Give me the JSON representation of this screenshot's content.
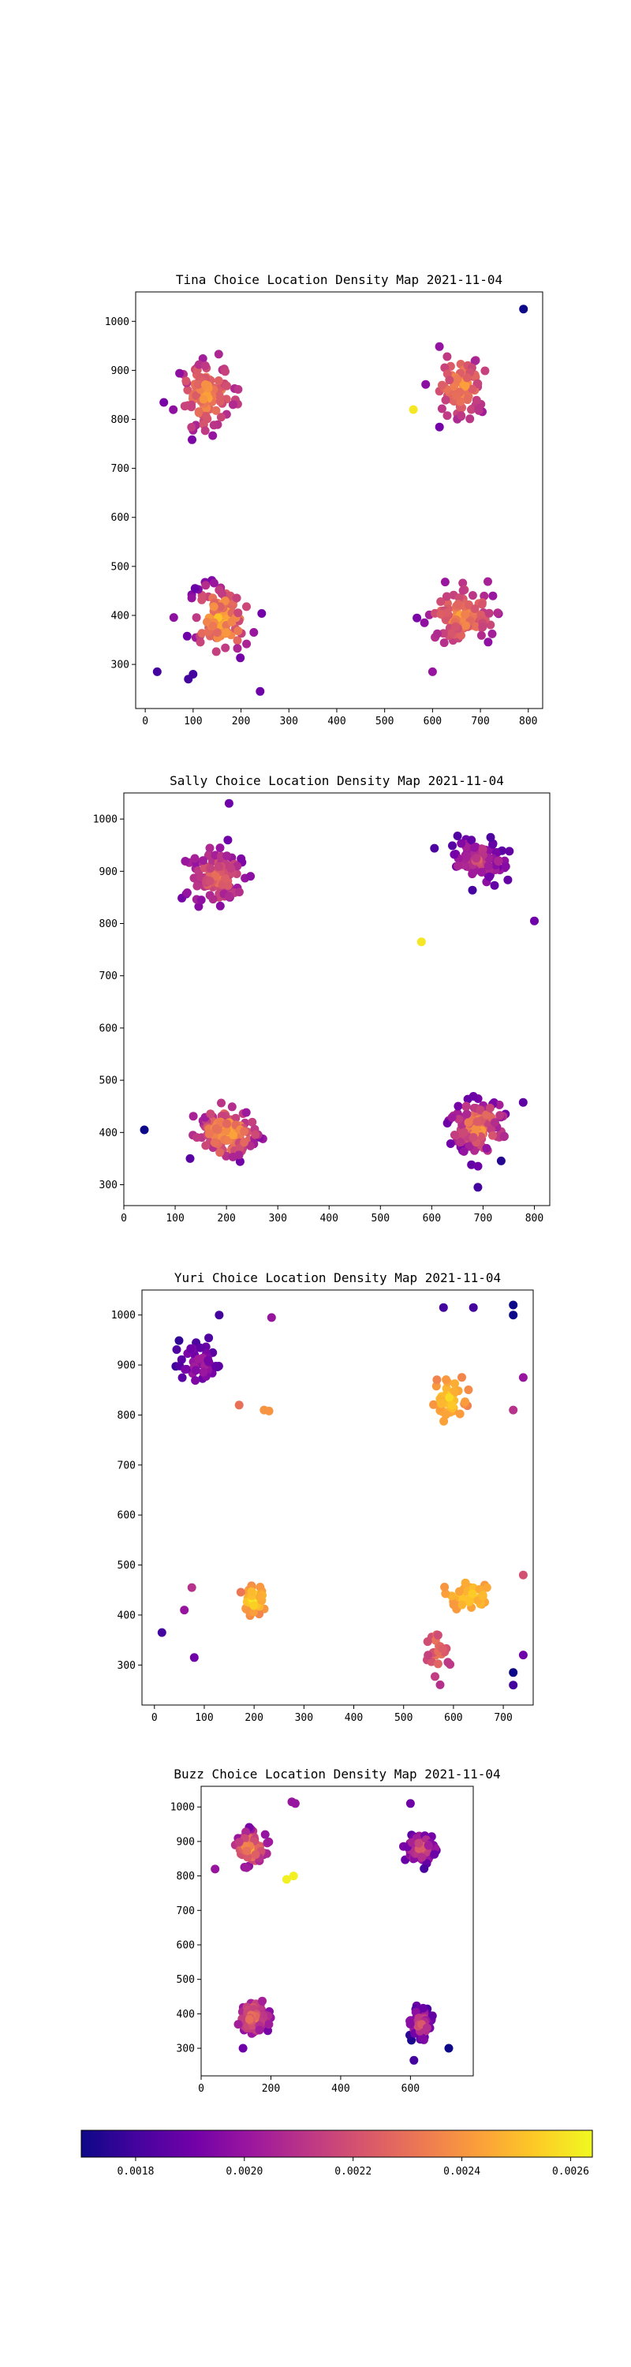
{
  "colormap": {
    "name": "plasma",
    "stops": [
      "#0d0887",
      "#46039f",
      "#7201a8",
      "#9c179e",
      "#bd3786",
      "#d8576b",
      "#ed7953",
      "#fb9f3a",
      "#fdca26",
      "#f0f921"
    ],
    "min": 0.0017,
    "max": 0.00264,
    "ticks": [
      0.0018,
      0.002,
      0.0022,
      0.0024,
      0.0026
    ],
    "tick_labels": [
      "0.0018",
      "0.0020",
      "0.0022",
      "0.0024",
      "0.0026"
    ]
  },
  "chart_data": [
    {
      "type": "scatter",
      "title": "Tina Choice Location Density Map 2021-11-04",
      "xlim": [
        -20,
        830
      ],
      "ylim": [
        210,
        1060
      ],
      "xticks": [
        0,
        100,
        200,
        300,
        400,
        500,
        600,
        700,
        800
      ],
      "yticks": [
        300,
        400,
        500,
        600,
        700,
        800,
        900,
        1000
      ],
      "clusters": [
        {
          "cx": 130,
          "cy": 850,
          "sx": 45,
          "sy": 55,
          "n": 110,
          "vmin": 0.0019,
          "vmax": 0.0025
        },
        {
          "cx": 660,
          "cy": 870,
          "sx": 40,
          "sy": 50,
          "n": 100,
          "vmin": 0.0019,
          "vmax": 0.0025
        },
        {
          "cx": 160,
          "cy": 390,
          "sx": 50,
          "sy": 60,
          "n": 110,
          "vmin": 0.0018,
          "vmax": 0.0026
        },
        {
          "cx": 660,
          "cy": 400,
          "sx": 50,
          "sy": 45,
          "n": 110,
          "vmin": 0.0019,
          "vmax": 0.0025
        }
      ],
      "points": [
        {
          "x": 790,
          "y": 1025,
          "v": 0.0017
        },
        {
          "x": 100,
          "y": 280,
          "v": 0.0018
        },
        {
          "x": 90,
          "y": 270,
          "v": 0.0018
        },
        {
          "x": 240,
          "y": 245,
          "v": 0.0019
        },
        {
          "x": 25,
          "y": 285,
          "v": 0.0018
        },
        {
          "x": 560,
          "y": 820,
          "v": 0.0026
        },
        {
          "x": 600,
          "y": 285,
          "v": 0.002
        }
      ]
    },
    {
      "type": "scatter",
      "title": "Sally Choice Location Density Map 2021-11-04",
      "xlim": [
        0,
        830
      ],
      "ylim": [
        260,
        1050
      ],
      "xticks": [
        0,
        100,
        200,
        300,
        400,
        500,
        600,
        700,
        800
      ],
      "yticks": [
        300,
        400,
        500,
        600,
        700,
        800,
        900,
        1000
      ],
      "clusters": [
        {
          "cx": 180,
          "cy": 890,
          "sx": 45,
          "sy": 45,
          "n": 110,
          "vmin": 0.0018,
          "vmax": 0.0024
        },
        {
          "cx": 690,
          "cy": 920,
          "sx": 45,
          "sy": 35,
          "n": 110,
          "vmin": 0.0017,
          "vmax": 0.0023
        },
        {
          "cx": 200,
          "cy": 400,
          "sx": 45,
          "sy": 40,
          "n": 130,
          "vmin": 0.0018,
          "vmax": 0.0026
        },
        {
          "cx": 690,
          "cy": 410,
          "sx": 45,
          "sy": 45,
          "n": 120,
          "vmin": 0.0017,
          "vmax": 0.0025
        }
      ],
      "points": [
        {
          "x": 40,
          "y": 405,
          "v": 0.0017
        },
        {
          "x": 580,
          "y": 765,
          "v": 0.0026
        },
        {
          "x": 800,
          "y": 805,
          "v": 0.0019
        },
        {
          "x": 690,
          "y": 295,
          "v": 0.0018
        },
        {
          "x": 205,
          "y": 1030,
          "v": 0.0019
        }
      ]
    },
    {
      "type": "scatter",
      "title": "Yuri Choice Location Density Map 2021-11-04",
      "xlim": [
        -25,
        760
      ],
      "ylim": [
        220,
        1050
      ],
      "xticks": [
        0,
        100,
        200,
        300,
        400,
        500,
        600,
        700
      ],
      "yticks": [
        300,
        400,
        500,
        600,
        700,
        800,
        900,
        1000
      ],
      "clusters": [
        {
          "cx": 90,
          "cy": 900,
          "sx": 35,
          "sy": 40,
          "n": 45,
          "vmin": 0.0017,
          "vmax": 0.0021
        },
        {
          "cx": 200,
          "cy": 430,
          "sx": 18,
          "sy": 20,
          "n": 55,
          "vmin": 0.0023,
          "vmax": 0.00264
        },
        {
          "cx": 590,
          "cy": 830,
          "sx": 25,
          "sy": 35,
          "n": 45,
          "vmin": 0.0023,
          "vmax": 0.0026
        },
        {
          "cx": 640,
          "cy": 440,
          "sx": 45,
          "sy": 25,
          "n": 40,
          "vmin": 0.0023,
          "vmax": 0.0026
        },
        {
          "cx": 570,
          "cy": 330,
          "sx": 20,
          "sy": 40,
          "n": 25,
          "vmin": 0.002,
          "vmax": 0.0024
        }
      ],
      "points": [
        {
          "x": 130,
          "y": 1000,
          "v": 0.0018
        },
        {
          "x": 235,
          "y": 995,
          "v": 0.002
        },
        {
          "x": 15,
          "y": 365,
          "v": 0.0018
        },
        {
          "x": 80,
          "y": 315,
          "v": 0.0019
        },
        {
          "x": 60,
          "y": 410,
          "v": 0.002
        },
        {
          "x": 75,
          "y": 455,
          "v": 0.0021
        },
        {
          "x": 580,
          "y": 1015,
          "v": 0.0018
        },
        {
          "x": 720,
          "y": 1020,
          "v": 0.0017
        },
        {
          "x": 720,
          "y": 1000,
          "v": 0.0017
        },
        {
          "x": 640,
          "y": 1015,
          "v": 0.0018
        },
        {
          "x": 740,
          "y": 875,
          "v": 0.002
        },
        {
          "x": 720,
          "y": 810,
          "v": 0.0021
        },
        {
          "x": 740,
          "y": 480,
          "v": 0.0022
        },
        {
          "x": 720,
          "y": 285,
          "v": 0.0017
        },
        {
          "x": 720,
          "y": 260,
          "v": 0.0018
        },
        {
          "x": 740,
          "y": 320,
          "v": 0.0019
        },
        {
          "x": 220,
          "y": 810,
          "v": 0.0024
        },
        {
          "x": 230,
          "y": 808,
          "v": 0.0024
        },
        {
          "x": 170,
          "y": 820,
          "v": 0.0023
        }
      ]
    },
    {
      "type": "scatter",
      "title": "Buzz Choice Location Density Map 2021-11-04",
      "xlim": [
        0,
        780
      ],
      "ylim": [
        220,
        1060
      ],
      "xticks": [
        0,
        200,
        400,
        600
      ],
      "yticks": [
        300,
        400,
        500,
        600,
        700,
        800,
        900,
        1000
      ],
      "clusters": [
        {
          "cx": 140,
          "cy": 880,
          "sx": 30,
          "sy": 35,
          "n": 110,
          "vmin": 0.0019,
          "vmax": 0.0025
        },
        {
          "cx": 630,
          "cy": 880,
          "sx": 30,
          "sy": 30,
          "n": 110,
          "vmin": 0.0018,
          "vmax": 0.0023
        },
        {
          "cx": 150,
          "cy": 390,
          "sx": 28,
          "sy": 35,
          "n": 110,
          "vmin": 0.0019,
          "vmax": 0.0024
        },
        {
          "cx": 630,
          "cy": 370,
          "sx": 25,
          "sy": 35,
          "n": 110,
          "vmin": 0.0017,
          "vmax": 0.0023
        }
      ],
      "points": [
        {
          "x": 260,
          "y": 1015,
          "v": 0.002
        },
        {
          "x": 270,
          "y": 1010,
          "v": 0.002
        },
        {
          "x": 245,
          "y": 790,
          "v": 0.00262
        },
        {
          "x": 265,
          "y": 800,
          "v": 0.00262
        },
        {
          "x": 40,
          "y": 820,
          "v": 0.002
        },
        {
          "x": 600,
          "y": 1010,
          "v": 0.0019
        },
        {
          "x": 710,
          "y": 300,
          "v": 0.0017
        },
        {
          "x": 610,
          "y": 265,
          "v": 0.0018
        },
        {
          "x": 120,
          "y": 300,
          "v": 0.0019
        }
      ]
    }
  ]
}
